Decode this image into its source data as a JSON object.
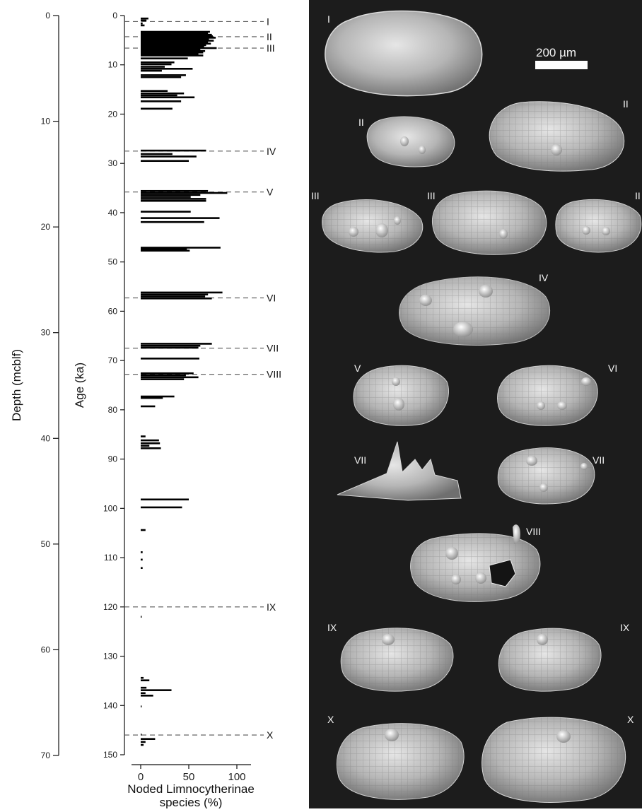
{
  "chart_data": {
    "type": "bar",
    "orientation": "horizontal",
    "xlabel": "Noded Limnocytherinae species (%)",
    "xlim": [
      0,
      100
    ],
    "xticks": [
      0,
      50,
      100
    ],
    "ylabel_age": "Age (ka)",
    "ylim_age": [
      0,
      150
    ],
    "yticks_age": [
      0,
      10,
      20,
      30,
      40,
      50,
      60,
      70,
      80,
      90,
      100,
      110,
      120,
      130,
      140,
      150
    ],
    "ylabel_depth": "Depth (mcblf)",
    "ylim_depth": [
      0,
      70
    ],
    "yticks_depth": [
      0,
      10,
      20,
      30,
      40,
      50,
      60,
      70
    ],
    "grid": false,
    "events": [
      {
        "label": "I",
        "age": 1.2
      },
      {
        "label": "II",
        "age": 4.3
      },
      {
        "label": "III",
        "age": 6.6
      },
      {
        "label": "IV",
        "age": 27.5
      },
      {
        "label": "V",
        "age": 35.8
      },
      {
        "label": "VI",
        "age": 57.3
      },
      {
        "label": "VII",
        "age": 67.5
      },
      {
        "label": "VIII",
        "age": 72.8
      },
      {
        "label": "IX",
        "age": 120.0
      },
      {
        "label": "X",
        "age": 146.0
      }
    ],
    "bars": [
      {
        "age": 0.6,
        "value": 8
      },
      {
        "age": 1.0,
        "value": 6
      },
      {
        "age": 1.6,
        "value": 2
      },
      {
        "age": 2.0,
        "value": 4
      },
      {
        "age": 3.3,
        "value": 72
      },
      {
        "age": 3.6,
        "value": 70
      },
      {
        "age": 3.9,
        "value": 74
      },
      {
        "age": 4.2,
        "value": 75
      },
      {
        "age": 4.5,
        "value": 78
      },
      {
        "age": 4.8,
        "value": 71
      },
      {
        "age": 5.1,
        "value": 76
      },
      {
        "age": 5.4,
        "value": 70
      },
      {
        "age": 5.7,
        "value": 73
      },
      {
        "age": 6.0,
        "value": 68
      },
      {
        "age": 6.3,
        "value": 66
      },
      {
        "age": 6.6,
        "value": 79
      },
      {
        "age": 6.9,
        "value": 62
      },
      {
        "age": 7.2,
        "value": 67
      },
      {
        "age": 7.5,
        "value": 65
      },
      {
        "age": 7.8,
        "value": 60
      },
      {
        "age": 8.1,
        "value": 65
      },
      {
        "age": 8.7,
        "value": 49
      },
      {
        "age": 9.5,
        "value": 35
      },
      {
        "age": 9.9,
        "value": 32
      },
      {
        "age": 10.4,
        "value": 25
      },
      {
        "age": 10.8,
        "value": 54
      },
      {
        "age": 11.2,
        "value": 22
      },
      {
        "age": 12.1,
        "value": 47
      },
      {
        "age": 12.5,
        "value": 42
      },
      {
        "age": 15.3,
        "value": 28
      },
      {
        "age": 15.8,
        "value": 45
      },
      {
        "age": 16.2,
        "value": 38
      },
      {
        "age": 16.6,
        "value": 56
      },
      {
        "age": 17.4,
        "value": 42
      },
      {
        "age": 18.9,
        "value": 33
      },
      {
        "age": 27.4,
        "value": 68
      },
      {
        "age": 28.1,
        "value": 33
      },
      {
        "age": 28.6,
        "value": 58
      },
      {
        "age": 29.5,
        "value": 50
      },
      {
        "age": 35.6,
        "value": 70
      },
      {
        "age": 36.0,
        "value": 90
      },
      {
        "age": 36.4,
        "value": 62
      },
      {
        "age": 36.8,
        "value": 52
      },
      {
        "age": 37.2,
        "value": 68
      },
      {
        "age": 37.6,
        "value": 68
      },
      {
        "age": 39.8,
        "value": 52
      },
      {
        "age": 41.1,
        "value": 82
      },
      {
        "age": 41.9,
        "value": 66
      },
      {
        "age": 47.1,
        "value": 83
      },
      {
        "age": 47.4,
        "value": 48
      },
      {
        "age": 47.7,
        "value": 51
      },
      {
        "age": 56.2,
        "value": 85
      },
      {
        "age": 56.6,
        "value": 70
      },
      {
        "age": 57.0,
        "value": 67
      },
      {
        "age": 57.4,
        "value": 74
      },
      {
        "age": 66.6,
        "value": 74
      },
      {
        "age": 67.0,
        "value": 62
      },
      {
        "age": 67.4,
        "value": 60
      },
      {
        "age": 69.6,
        "value": 61
      },
      {
        "age": 72.6,
        "value": 55
      },
      {
        "age": 73.0,
        "value": 47
      },
      {
        "age": 73.4,
        "value": 60
      },
      {
        "age": 73.8,
        "value": 45
      },
      {
        "age": 77.3,
        "value": 35
      },
      {
        "age": 77.6,
        "value": 23
      },
      {
        "age": 79.3,
        "value": 15
      },
      {
        "age": 85.4,
        "value": 5
      },
      {
        "age": 86.2,
        "value": 19
      },
      {
        "age": 86.8,
        "value": 20
      },
      {
        "age": 87.3,
        "value": 9
      },
      {
        "age": 87.8,
        "value": 21
      },
      {
        "age": 98.2,
        "value": 50
      },
      {
        "age": 99.8,
        "value": 43
      },
      {
        "age": 104.4,
        "value": 5
      },
      {
        "age": 108.9,
        "value": 2
      },
      {
        "age": 110.4,
        "value": 2
      },
      {
        "age": 112.1,
        "value": 2
      },
      {
        "age": 122.0,
        "value": 1
      },
      {
        "age": 134.4,
        "value": 3
      },
      {
        "age": 134.9,
        "value": 9
      },
      {
        "age": 136.4,
        "value": 6
      },
      {
        "age": 136.9,
        "value": 32
      },
      {
        "age": 137.5,
        "value": 5
      },
      {
        "age": 138.0,
        "value": 13
      },
      {
        "age": 140.2,
        "value": 1
      },
      {
        "age": 145.9,
        "value": 1
      },
      {
        "age": 146.8,
        "value": 15
      },
      {
        "age": 147.4,
        "value": 5
      },
      {
        "age": 148.0,
        "value": 3
      }
    ]
  },
  "photo_panel": {
    "scale_bar_label": "200 µm",
    "specimens": [
      {
        "label": "I"
      },
      {
        "label": "II"
      },
      {
        "label": "II"
      },
      {
        "label": "III"
      },
      {
        "label": "III"
      },
      {
        "label": "II"
      },
      {
        "label": "IV"
      },
      {
        "label": "V"
      },
      {
        "label": "VI"
      },
      {
        "label": "VII"
      },
      {
        "label": "VII"
      },
      {
        "label": "VIII"
      },
      {
        "label": "IX"
      },
      {
        "label": "IX"
      },
      {
        "label": "X"
      },
      {
        "label": "X"
      }
    ]
  }
}
